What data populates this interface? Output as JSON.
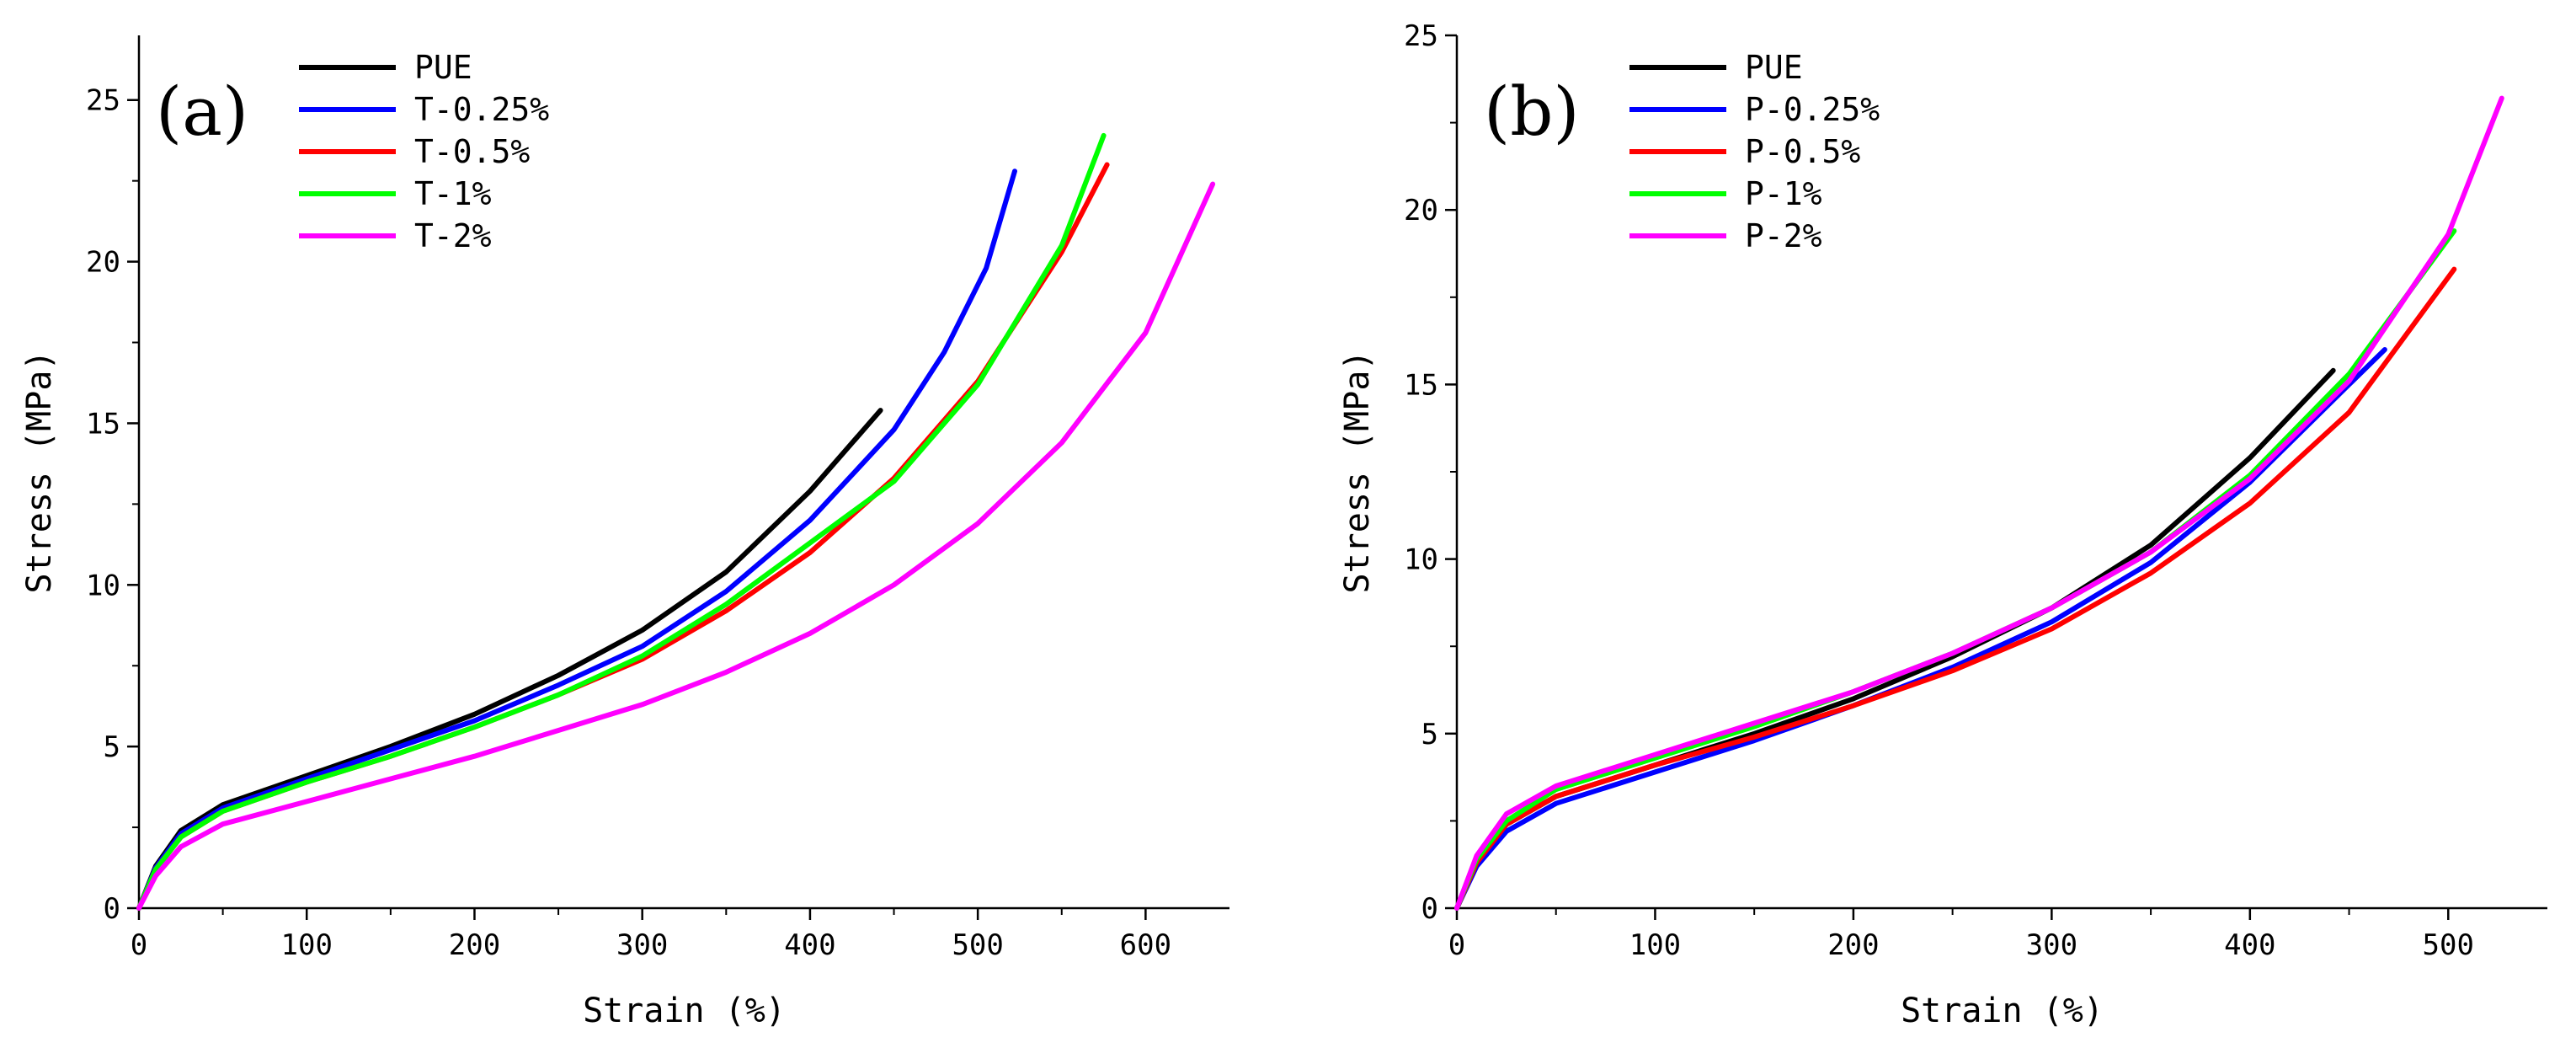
{
  "chart_data": [
    {
      "type": "line",
      "panel_label": "(a)",
      "xlabel": "Strain (%)",
      "ylabel": "Stress (MPa)",
      "xlim": [
        0,
        650
      ],
      "ylim": [
        0,
        27
      ],
      "xticks": [
        0,
        100,
        200,
        300,
        400,
        500,
        600
      ],
      "yticks": [
        0,
        5,
        10,
        15,
        20,
        25
      ],
      "legend_position": "top-left",
      "series": [
        {
          "name": "PUE",
          "color": "#000000",
          "points": [
            [
              0,
              0
            ],
            [
              10,
              1.3
            ],
            [
              25,
              2.4
            ],
            [
              50,
              3.2
            ],
            [
              100,
              4.1
            ],
            [
              150,
              5.0
            ],
            [
              200,
              6.0
            ],
            [
              250,
              7.2
            ],
            [
              300,
              8.6
            ],
            [
              350,
              10.4
            ],
            [
              400,
              12.9
            ],
            [
              442,
              15.4
            ]
          ]
        },
        {
          "name": "T-0.25%",
          "color": "#0000ff",
          "points": [
            [
              0,
              0
            ],
            [
              10,
              1.25
            ],
            [
              25,
              2.3
            ],
            [
              50,
              3.1
            ],
            [
              100,
              4.0
            ],
            [
              150,
              4.9
            ],
            [
              200,
              5.8
            ],
            [
              250,
              6.9
            ],
            [
              300,
              8.1
            ],
            [
              350,
              9.8
            ],
            [
              400,
              12.0
            ],
            [
              450,
              14.8
            ],
            [
              480,
              17.2
            ],
            [
              505,
              19.8
            ],
            [
              522,
              22.8
            ]
          ]
        },
        {
          "name": "T-0.5%",
          "color": "#ff0000",
          "points": [
            [
              0,
              0
            ],
            [
              10,
              1.2
            ],
            [
              25,
              2.2
            ],
            [
              50,
              3.0
            ],
            [
              100,
              3.9
            ],
            [
              150,
              4.7
            ],
            [
              200,
              5.6
            ],
            [
              250,
              6.6
            ],
            [
              300,
              7.7
            ],
            [
              350,
              9.2
            ],
            [
              400,
              11.0
            ],
            [
              450,
              13.3
            ],
            [
              500,
              16.3
            ],
            [
              550,
              20.3
            ],
            [
              577,
              23.0
            ]
          ]
        },
        {
          "name": "T-1%",
          "color": "#00ff00",
          "points": [
            [
              0,
              0
            ],
            [
              10,
              1.2
            ],
            [
              25,
              2.2
            ],
            [
              50,
              3.0
            ],
            [
              100,
              3.9
            ],
            [
              150,
              4.7
            ],
            [
              200,
              5.6
            ],
            [
              250,
              6.6
            ],
            [
              300,
              7.8
            ],
            [
              350,
              9.4
            ],
            [
              400,
              11.3
            ],
            [
              450,
              13.2
            ],
            [
              500,
              16.2
            ],
            [
              550,
              20.5
            ],
            [
              575,
              23.9
            ]
          ]
        },
        {
          "name": "T-2%",
          "color": "#ff00ff",
          "points": [
            [
              0,
              0
            ],
            [
              10,
              1.0
            ],
            [
              25,
              1.9
            ],
            [
              50,
              2.6
            ],
            [
              100,
              3.3
            ],
            [
              150,
              4.0
            ],
            [
              200,
              4.7
            ],
            [
              250,
              5.5
            ],
            [
              300,
              6.3
            ],
            [
              350,
              7.3
            ],
            [
              400,
              8.5
            ],
            [
              450,
              10.0
            ],
            [
              500,
              11.9
            ],
            [
              550,
              14.4
            ],
            [
              600,
              17.8
            ],
            [
              640,
              22.4
            ]
          ]
        }
      ]
    },
    {
      "type": "line",
      "panel_label": "(b)",
      "xlabel": "Strain (%)",
      "ylabel": "Stress (MPa)",
      "xlim": [
        0,
        550
      ],
      "ylim": [
        0,
        25
      ],
      "xticks": [
        0,
        100,
        200,
        300,
        400,
        500
      ],
      "yticks": [
        0,
        5,
        10,
        15,
        20,
        25
      ],
      "legend_position": "top-left",
      "series": [
        {
          "name": "PUE",
          "color": "#000000",
          "points": [
            [
              0,
              0
            ],
            [
              10,
              1.3
            ],
            [
              25,
              2.4
            ],
            [
              50,
              3.2
            ],
            [
              100,
              4.1
            ],
            [
              150,
              5.0
            ],
            [
              200,
              6.0
            ],
            [
              250,
              7.2
            ],
            [
              300,
              8.6
            ],
            [
              350,
              10.4
            ],
            [
              400,
              12.9
            ],
            [
              442,
              15.4
            ]
          ]
        },
        {
          "name": "P-0.25%",
          "color": "#0000ff",
          "points": [
            [
              0,
              0
            ],
            [
              10,
              1.2
            ],
            [
              25,
              2.2
            ],
            [
              50,
              3.0
            ],
            [
              100,
              3.9
            ],
            [
              150,
              4.8
            ],
            [
              200,
              5.8
            ],
            [
              250,
              6.9
            ],
            [
              300,
              8.2
            ],
            [
              350,
              9.9
            ],
            [
              400,
              12.2
            ],
            [
              450,
              15.0
            ],
            [
              468,
              16.0
            ]
          ]
        },
        {
          "name": "P-0.5%",
          "color": "#ff0000",
          "points": [
            [
              0,
              0
            ],
            [
              10,
              1.3
            ],
            [
              25,
              2.4
            ],
            [
              50,
              3.2
            ],
            [
              100,
              4.1
            ],
            [
              150,
              4.9
            ],
            [
              200,
              5.8
            ],
            [
              250,
              6.8
            ],
            [
              300,
              8.0
            ],
            [
              350,
              9.6
            ],
            [
              400,
              11.6
            ],
            [
              450,
              14.2
            ],
            [
              503,
              18.3
            ]
          ]
        },
        {
          "name": "P-1%",
          "color": "#00ff00",
          "points": [
            [
              0,
              0
            ],
            [
              10,
              1.4
            ],
            [
              25,
              2.5
            ],
            [
              50,
              3.4
            ],
            [
              100,
              4.3
            ],
            [
              150,
              5.2
            ],
            [
              200,
              6.2
            ],
            [
              250,
              7.3
            ],
            [
              300,
              8.6
            ],
            [
              350,
              10.2
            ],
            [
              400,
              12.4
            ],
            [
              450,
              15.3
            ],
            [
              503,
              19.4
            ]
          ]
        },
        {
          "name": "P-2%",
          "color": "#ff00ff",
          "points": [
            [
              0,
              0
            ],
            [
              10,
              1.5
            ],
            [
              25,
              2.7
            ],
            [
              50,
              3.5
            ],
            [
              100,
              4.4
            ],
            [
              150,
              5.3
            ],
            [
              200,
              6.2
            ],
            [
              250,
              7.3
            ],
            [
              300,
              8.6
            ],
            [
              350,
              10.2
            ],
            [
              400,
              12.3
            ],
            [
              450,
              15.1
            ],
            [
              500,
              19.3
            ],
            [
              527,
              23.2
            ]
          ]
        }
      ]
    }
  ]
}
